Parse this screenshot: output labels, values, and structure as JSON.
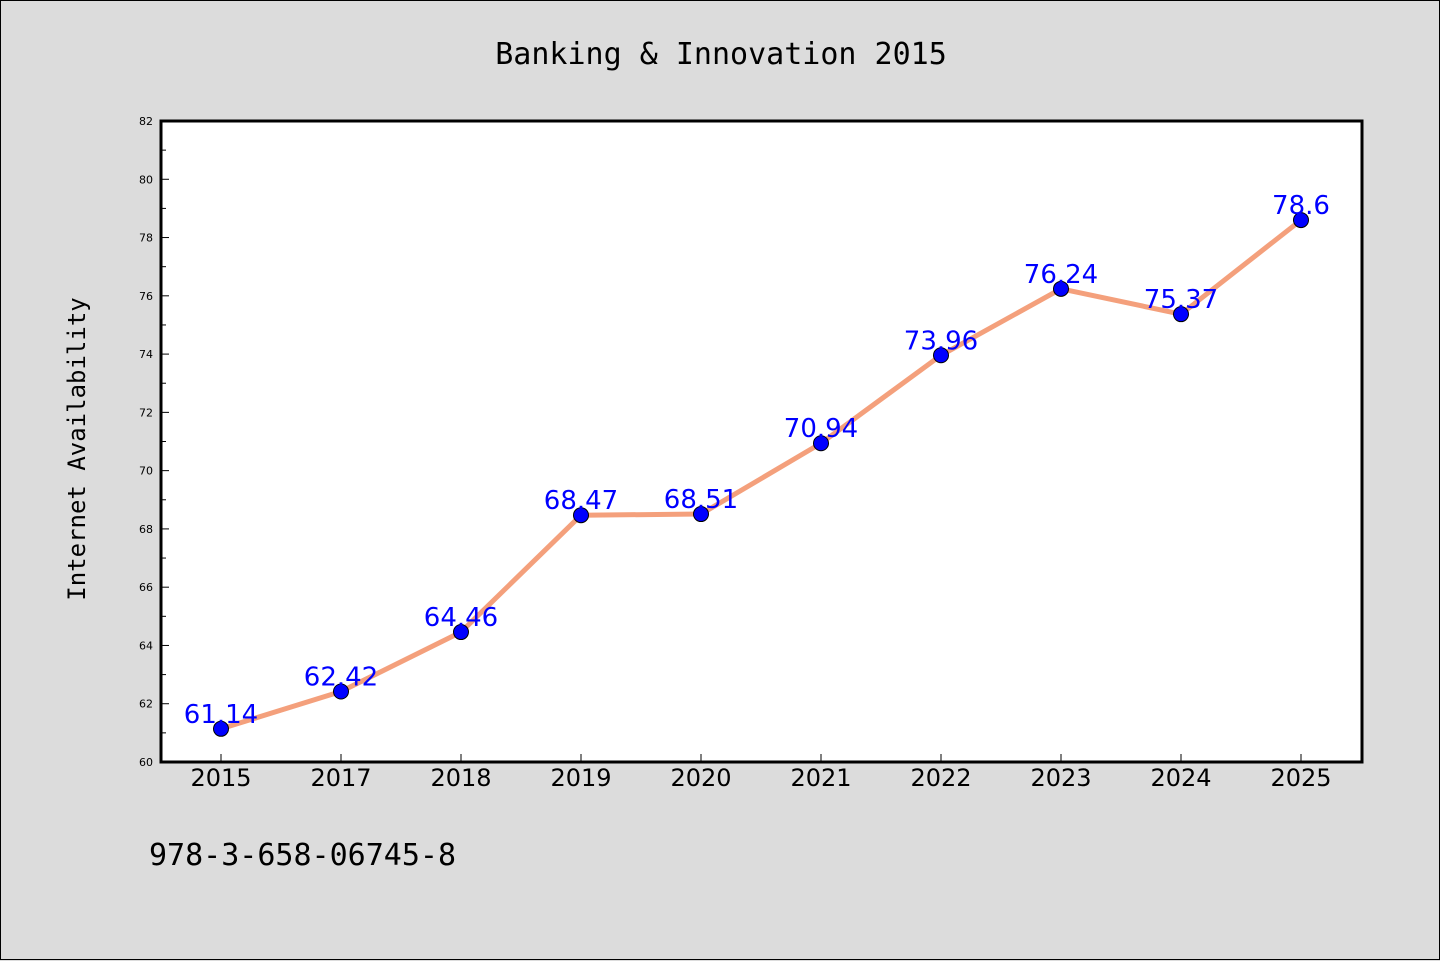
{
  "chart_data": {
    "type": "line",
    "title": "Banking & Innovation 2015",
    "xlabel": "",
    "ylabel": "Internet Availability",
    "categories": [
      "2015",
      "2017",
      "2018",
      "2019",
      "2020",
      "2021",
      "2022",
      "2023",
      "2024",
      "2025"
    ],
    "series": [
      {
        "values": [
          61.14,
          62.42,
          64.46,
          68.47,
          68.51,
          70.94,
          73.96,
          76.24,
          75.37,
          78.6
        ],
        "labels": [
          "61.14",
          "62.42",
          "64.46",
          "68.47",
          "68.51",
          "70.94",
          "73.96",
          "76.24",
          "75.37",
          "78.6"
        ],
        "line_color": "#f4a07c",
        "marker_color": "#0000ff",
        "label_color": "#0000ff"
      }
    ],
    "ylim": [
      60,
      82
    ],
    "yticks": [
      "60",
      "62",
      "64",
      "66",
      "68",
      "70",
      "72",
      "74",
      "76",
      "78",
      "80",
      "82"
    ],
    "grid": false,
    "legend": "none",
    "footnote": "978-3-658-06745-8"
  },
  "colors": {
    "background": "#dcdcdc",
    "plot_background": "#ffffff"
  }
}
